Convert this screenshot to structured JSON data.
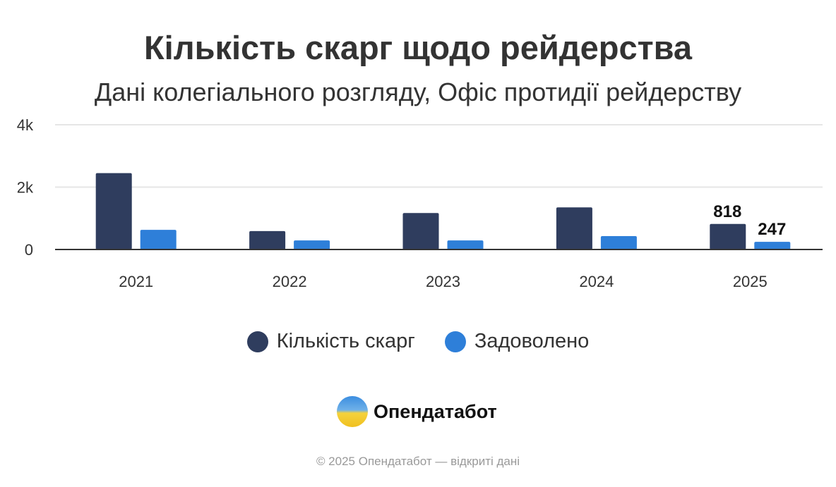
{
  "chart_data": {
    "type": "bar",
    "title": "Кількість скарг щодо рейдерства",
    "subtitle": "Дані колегіального розгляду, Офіс протидії рейдерству",
    "categories": [
      "2021",
      "2022",
      "2023",
      "2024",
      "2025"
    ],
    "series": [
      {
        "name": "Кількість скарг",
        "color": "#2f3d5e",
        "values": [
          2450,
          590,
          1170,
          1350,
          818
        ]
      },
      {
        "name": "Задоволено",
        "color": "#2e7fd9",
        "values": [
          630,
          290,
          290,
          430,
          247
        ]
      }
    ],
    "data_labels": {
      "2025": [
        "818",
        "247"
      ]
    },
    "yticks": [
      {
        "value": 0,
        "label": "0"
      },
      {
        "value": 2000,
        "label": "2k"
      },
      {
        "value": 4000,
        "label": "4k"
      }
    ],
    "ylim": [
      0,
      4000
    ],
    "grid": true,
    "legend": "bottom"
  },
  "branding": {
    "logo_text": "Опендатабот",
    "footer": "© 2025 Опендатабот — відкриті дані"
  }
}
